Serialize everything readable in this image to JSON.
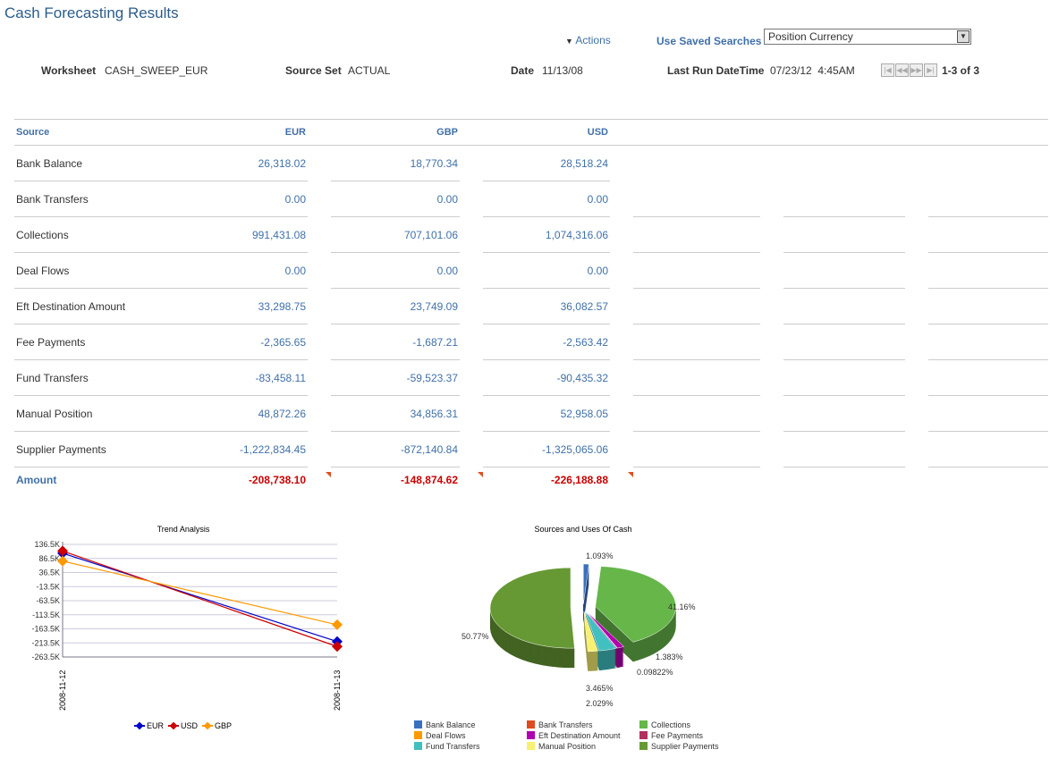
{
  "page": {
    "title": "Cash Forecasting Results",
    "actions": "Actions",
    "saved_searches_label": "Use Saved Searches",
    "saved_search_value": "Position Currency"
  },
  "header": {
    "worksheet_label": "Worksheet",
    "worksheet": "CASH_SWEEP_EUR",
    "source_set_label": "Source Set",
    "source_set": "ACTUAL",
    "date_label": "Date",
    "date": "11/13/08",
    "last_run_label": "Last Run DateTime",
    "last_run": "07/23/12  4:45AM",
    "pager": "1-3 of 3"
  },
  "table": {
    "headers": [
      "Source",
      "EUR",
      "GBP",
      "USD"
    ],
    "rows": [
      [
        "Bank Balance",
        "26,318.02",
        "18,770.34",
        "28,518.24"
      ],
      [
        "Bank Transfers",
        "0.00",
        "0.00",
        "0.00"
      ],
      [
        "Collections",
        "991,431.08",
        "707,101.06",
        "1,074,316.06"
      ],
      [
        "Deal Flows",
        "0.00",
        "0.00",
        "0.00"
      ],
      [
        "Eft Destination Amount",
        "33,298.75",
        "23,749.09",
        "36,082.57"
      ],
      [
        "Fee Payments",
        "-2,365.65",
        "-1,687.21",
        "-2,563.42"
      ],
      [
        "Fund Transfers",
        "-83,458.11",
        "-59,523.37",
        "-90,435.32"
      ],
      [
        "Manual Position",
        "48,872.26",
        "34,856.31",
        "52,958.05"
      ],
      [
        "Supplier Payments",
        "-1,222,834.45",
        "-872,140.84",
        "-1,325,065.06"
      ]
    ],
    "total": [
      "Amount",
      "-208,738.10",
      "-148,874.62",
      "-226,188.88"
    ]
  },
  "chart_data": [
    {
      "type": "line",
      "title": "Trend Analysis",
      "x": [
        "2008-11-12",
        "2008-11-13"
      ],
      "yticks": [
        "136.5K",
        "86.5K",
        "36.5K",
        "-13.5K",
        "-63.5K",
        "-113.5K",
        "-163.5K",
        "-213.5K",
        "-263.5K"
      ],
      "ylim": [
        -263.5,
        136.5
      ],
      "grid": true,
      "legend": "bottom",
      "series": [
        {
          "name": "EUR",
          "color": "#0000cc",
          "values": [
            105,
            -208.7
          ]
        },
        {
          "name": "USD",
          "color": "#cc0000",
          "values": [
            113,
            -226.2
          ]
        },
        {
          "name": "GBP",
          "color": "#ff9900",
          "values": [
            77,
            -148.9
          ]
        }
      ]
    },
    {
      "type": "pie",
      "title": "Sources and Uses Of Cash",
      "legend": "bottom",
      "slices": [
        {
          "name": "Bank Balance",
          "value": 1.093,
          "label": "1.093%",
          "color": "#3a6fbf"
        },
        {
          "name": "Collections",
          "value": 41.16,
          "label": "41.16%",
          "color": "#66b64a"
        },
        {
          "name": "Bank Transfers",
          "value": 0,
          "label": "",
          "color": "#e04a20"
        },
        {
          "name": "Deal Flows",
          "value": 0,
          "label": "",
          "color": "#ff9900"
        },
        {
          "name": "Eft Destination Amount",
          "value": 1.383,
          "label": "1.383%",
          "color": "#b000b0"
        },
        {
          "name": "Fee Payments",
          "value": 0.09822,
          "label": "0.09822%",
          "color": "#b03060"
        },
        {
          "name": "Fund Transfers",
          "value": 3.465,
          "label": "3.465%",
          "color": "#40c0c0"
        },
        {
          "name": "Manual Position",
          "value": 2.029,
          "label": "2.029%",
          "color": "#f8f070"
        },
        {
          "name": "Supplier Payments",
          "value": 50.77,
          "label": "50.77%",
          "color": "#669933"
        }
      ],
      "legend_order": [
        "Bank Balance",
        "Bank Transfers",
        "Collections",
        "Deal Flows",
        "Eft Destination Amount",
        "Fee Payments",
        "Fund Transfers",
        "Manual Position",
        "Supplier Payments"
      ]
    }
  ]
}
